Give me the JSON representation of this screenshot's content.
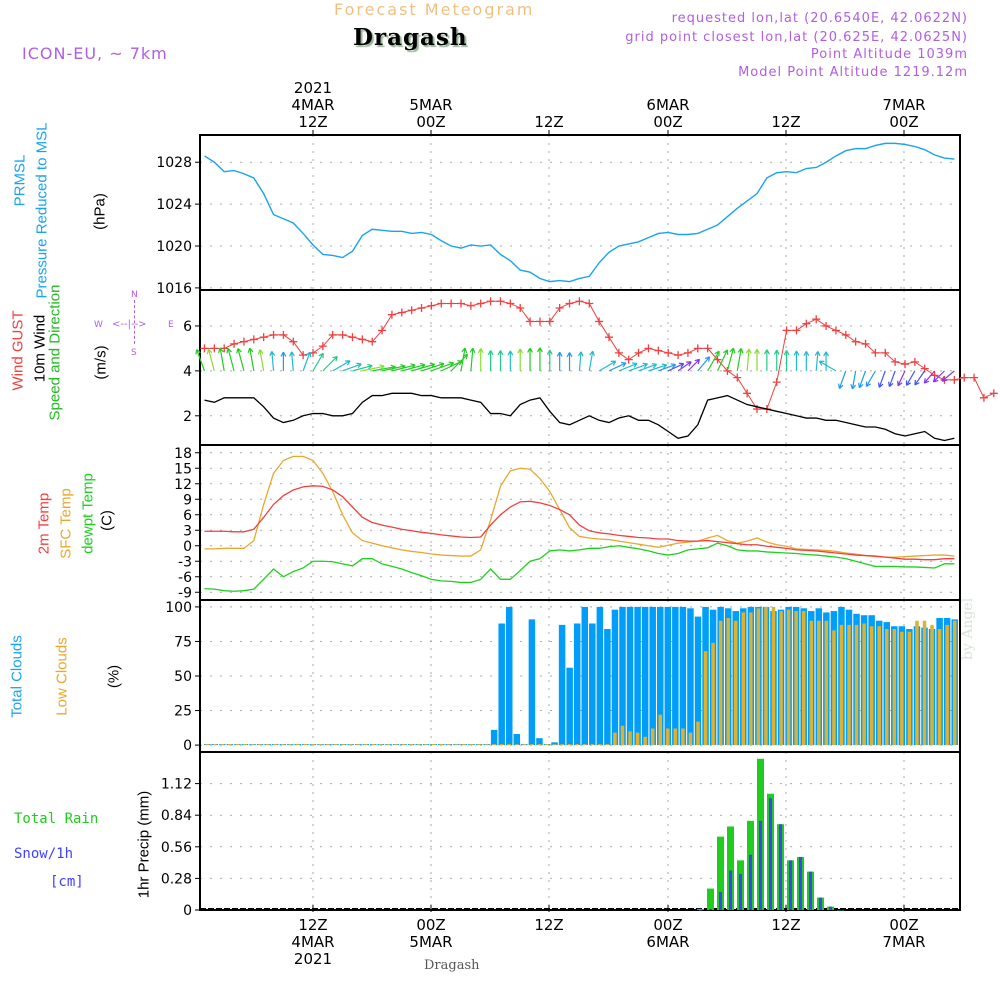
{
  "header": {
    "title": "Forecast Meteogram",
    "location": "Dragash",
    "model": "ICON-EU, ~ 7km",
    "requested": "requested lon,lat (20.6540E, 42.0622N)",
    "grid_point": "grid point closest lon,lat (20.625E, 42.0625N)",
    "point_altitude": "Point Altitude 1039m",
    "model_altitude": "Model Point Altitude 1219.12m"
  },
  "footer": {
    "location": "Dragash",
    "watermark": "by Angel"
  },
  "panel_labels": {
    "pressure": {
      "l1": "PRMSL",
      "l2": "Pressure Reduced to MSL",
      "unit": "(hPa)"
    },
    "wind": {
      "l1_a": "Wind ",
      "l1_b": "GUST",
      "l2": "10m Wind",
      "l3": "Speed and Direction",
      "unit": "(m/s)",
      "compass_n": "N",
      "compass_s": "S",
      "compass_w": "W",
      "compass_e": "E",
      "compass_h": "<--|-->"
    },
    "temp": {
      "l1": "2m Temp",
      "l2": "SFC Temp",
      "l3": "dewpt Temp",
      "unit": "(C)"
    },
    "clouds": {
      "l1": "Total Clouds",
      "l2": "Low Clouds",
      "unit": "(%)"
    },
    "precip": {
      "l1": "Total   Rain",
      "l2": "Snow/1h",
      "l3": "[cm]",
      "unit": "1hr Precip (mm)"
    }
  },
  "colors": {
    "pressure": "#1ba3ec",
    "gust": "#f04040",
    "wind": "#000000",
    "temp2m": "#f04040",
    "sfc": "#e8a830",
    "dewpt": "#20d020",
    "total_clouds": "#009ef8",
    "low_clouds": "#e0b030",
    "rain": "#20cc20",
    "snow": "#4040ff",
    "purple": "#b15ee0"
  },
  "chart_data": [
    {
      "type": "line",
      "title": "PRMSL Pressure Reduced to MSL",
      "ylabel": "(hPa)",
      "ylim": [
        1015.8,
        1030.6
      ],
      "yticks": [
        1016,
        1020,
        1024,
        1028
      ],
      "x_hours_from": "2021-03-04T01Z",
      "series": [
        {
          "name": "PRMSL",
          "values": [
            1028.6,
            1028.0,
            1027.1,
            1027.2,
            1026.9,
            1026.5,
            1025.0,
            1023.0,
            1022.6,
            1022.2,
            1021.2,
            1020.1,
            1019.2,
            1019.1,
            1018.9,
            1019.5,
            1021.0,
            1021.6,
            1021.5,
            1021.4,
            1021.4,
            1021.2,
            1021.3,
            1021.1,
            1020.5,
            1020.0,
            1019.8,
            1020.1,
            1020.0,
            1020.1,
            1019.2,
            1018.6,
            1017.7,
            1017.5,
            1016.9,
            1016.6,
            1016.7,
            1016.6,
            1016.9,
            1017.1,
            1018.4,
            1019.4,
            1020.0,
            1020.2,
            1020.4,
            1020.8,
            1021.2,
            1021.3,
            1021.1,
            1021.1,
            1021.2,
            1021.6,
            1022.0,
            1022.8,
            1023.6,
            1024.3,
            1025.0,
            1026.5,
            1027.0,
            1027.1,
            1027.0,
            1027.4,
            1027.5,
            1028.0,
            1028.6,
            1029.1,
            1029.3,
            1029.3,
            1029.6,
            1029.8,
            1029.8,
            1029.7,
            1029.5,
            1029.2,
            1028.7,
            1028.4,
            1028.3
          ]
        }
      ]
    },
    {
      "type": "line",
      "title": "Wind GUST / 10m Wind Speed and Direction",
      "ylabel": "(m/s)",
      "ylim": [
        0.7,
        7.6
      ],
      "yticks": [
        2,
        4,
        6
      ],
      "series": [
        {
          "name": "Wind GUST",
          "values": [
            5.0,
            5.0,
            5.0,
            5.2,
            5.3,
            5.4,
            5.5,
            5.6,
            5.6,
            5.3,
            4.7,
            4.8,
            5.1,
            5.6,
            5.6,
            5.5,
            5.4,
            5.3,
            5.8,
            6.5,
            6.6,
            6.7,
            6.8,
            6.9,
            7.0,
            7.0,
            7.0,
            6.9,
            7.0,
            7.1,
            7.1,
            7.0,
            6.8,
            6.2,
            6.2,
            6.2,
            6.8,
            7.0,
            7.1,
            7.0,
            6.2,
            5.5,
            4.8,
            4.5,
            4.8,
            5.0,
            4.9,
            4.8,
            4.7,
            4.8,
            5.0,
            5.0,
            4.5,
            4.0,
            3.7,
            3.0,
            2.3,
            2.3,
            3.5,
            5.8,
            5.8,
            6.1,
            6.3,
            6.0,
            5.8,
            5.6,
            5.3,
            5.2,
            4.8,
            4.8,
            4.4,
            4.3,
            4.4,
            4.1,
            3.8,
            3.6,
            3.6,
            3.7,
            3.7,
            2.8,
            3.0
          ]
        },
        {
          "name": "10m Wind",
          "values": [
            2.7,
            2.6,
            2.8,
            2.8,
            2.8,
            2.8,
            2.4,
            1.9,
            1.7,
            1.8,
            2.0,
            2.1,
            2.1,
            2.0,
            2.0,
            2.1,
            2.6,
            2.9,
            2.9,
            3.0,
            3.0,
            3.0,
            2.9,
            2.9,
            2.8,
            2.8,
            2.8,
            2.7,
            2.6,
            2.1,
            2.1,
            2.0,
            2.5,
            2.7,
            2.8,
            2.2,
            1.7,
            1.6,
            1.8,
            2.0,
            1.8,
            1.7,
            1.9,
            2.0,
            1.8,
            1.8,
            1.6,
            1.3,
            1.0,
            1.1,
            1.6,
            2.7,
            2.8,
            2.9,
            2.7,
            2.5,
            2.4,
            2.3,
            2.2,
            2.1,
            2.0,
            1.9,
            1.9,
            1.8,
            1.8,
            1.7,
            1.6,
            1.5,
            1.5,
            1.4,
            1.2,
            1.1,
            1.2,
            1.3,
            1.0,
            0.9,
            1.0
          ]
        },
        {
          "name": "Wind Direction (deg, towards)",
          "values": [
            340,
            345,
            350,
            345,
            345,
            350,
            350,
            355,
            0,
            355,
            20,
            30,
            45,
            60,
            70,
            75,
            78,
            80,
            78,
            76,
            75,
            74,
            72,
            70,
            65,
            45,
            10,
            5,
            0,
            0,
            0,
            0,
            0,
            0,
            0,
            0,
            0,
            0,
            5,
            10,
            60,
            65,
            68,
            70,
            70,
            72,
            70,
            65,
            55,
            45,
            40,
            30,
            25,
            15,
            10,
            5,
            0,
            0,
            0,
            0,
            0,
            0,
            5,
            0,
            300,
            200,
            190,
            200,
            210,
            200,
            200,
            205,
            210,
            215,
            220,
            225,
            230,
            232,
            235,
            238,
            240,
            240,
            245,
            250,
            255,
            250,
            250,
            255,
            260,
            255,
            250
          ]
        }
      ]
    },
    {
      "type": "line",
      "title": "2m Temp / SFC Temp / dewpt Temp",
      "ylabel": "(C)",
      "ylim": [
        -10.5,
        19.5
      ],
      "yticks": [
        -9,
        -6,
        -3,
        0,
        3,
        6,
        9,
        12,
        15,
        18
      ],
      "series": [
        {
          "name": "2m Temp",
          "values": [
            2.8,
            2.8,
            2.8,
            2.7,
            2.7,
            3.2,
            5.5,
            8.0,
            9.7,
            10.8,
            11.4,
            11.6,
            11.5,
            10.8,
            9.5,
            7.5,
            5.5,
            4.5,
            4.0,
            3.6,
            3.2,
            2.9,
            2.6,
            2.4,
            2.1,
            1.9,
            1.7,
            1.6,
            1.7,
            4.0,
            6.0,
            7.5,
            8.5,
            8.6,
            8.3,
            7.8,
            7.0,
            6.0,
            4.0,
            2.9,
            2.5,
            2.3,
            2.0,
            1.8,
            1.6,
            1.5,
            1.3,
            1.3,
            1.0,
            0.9,
            0.9,
            1.0,
            0.8,
            0.6,
            0.4,
            0.2,
            0.2,
            -0.1,
            -0.3,
            -0.5,
            -0.8,
            -0.9,
            -1.0,
            -1.2,
            -1.4,
            -1.6,
            -1.8,
            -1.9,
            -2.0,
            -2.2,
            -2.4,
            -2.6,
            -2.6,
            -2.7,
            -2.7,
            -2.5,
            -2.5
          ]
        },
        {
          "name": "SFC Temp",
          "values": [
            -0.6,
            -0.6,
            -0.5,
            -0.5,
            -0.5,
            1.0,
            8.0,
            14.0,
            16.5,
            17.3,
            17.3,
            16.5,
            14.0,
            10.5,
            6.0,
            2.5,
            1.0,
            0.5,
            0.0,
            -0.4,
            -0.8,
            -1.1,
            -1.3,
            -1.6,
            -1.8,
            -1.9,
            -2.0,
            -2.0,
            -0.8,
            5.0,
            11.5,
            14.5,
            15.0,
            14.8,
            13.0,
            10.5,
            7.0,
            3.5,
            1.8,
            1.5,
            1.3,
            1.2,
            0.9,
            0.6,
            0.3,
            0.0,
            -0.3,
            0.1,
            0.5,
            0.7,
            0.9,
            1.5,
            2.0,
            1.0,
            0.5,
            0.9,
            1.5,
            0.7,
            0.2,
            -0.1,
            -0.6,
            -0.7,
            -0.8,
            -0.9,
            -1.1,
            -1.4,
            -1.6,
            -1.9,
            -2.1,
            -2.2,
            -2.2,
            -2.1,
            -2.0,
            -1.9,
            -1.8,
            -1.8,
            -2.0
          ]
        },
        {
          "name": "dewpt Temp",
          "values": [
            -8.3,
            -8.4,
            -8.7,
            -8.8,
            -8.7,
            -8.4,
            -6.5,
            -4.5,
            -6.0,
            -5.0,
            -4.3,
            -3.0,
            -3.0,
            -3.1,
            -3.5,
            -3.9,
            -2.5,
            -2.5,
            -3.5,
            -4.0,
            -4.5,
            -5.2,
            -5.8,
            -6.5,
            -6.8,
            -6.9,
            -7.1,
            -7.1,
            -6.5,
            -4.5,
            -6.5,
            -6.5,
            -4.8,
            -3.0,
            -2.5,
            -1.0,
            -0.8,
            -1.0,
            -0.8,
            -0.5,
            -0.5,
            -0.2,
            0.0,
            -0.3,
            -0.6,
            -1.0,
            -1.5,
            -1.8,
            -1.5,
            -0.8,
            -0.6,
            -0.4,
            0.5,
            0.0,
            -0.8,
            -1.0,
            -1.0,
            -1.2,
            -1.3,
            -1.4,
            -1.5,
            -1.7,
            -1.8,
            -2.0,
            -2.2,
            -2.5,
            -3.0,
            -3.5,
            -4.0,
            -4.0,
            -4.0,
            -4.1,
            -4.1,
            -4.2,
            -4.3,
            -3.5,
            -3.5
          ]
        }
      ]
    },
    {
      "type": "bar",
      "title": "Total Clouds / Low Clouds",
      "ylabel": "(%)",
      "ylim": [
        -5,
        105
      ],
      "yticks": [
        0,
        25,
        50,
        75,
        100
      ],
      "series": [
        {
          "name": "Total Clouds",
          "values": [
            0,
            0,
            0,
            0,
            0,
            0,
            0,
            0,
            0,
            0,
            0,
            0,
            0,
            0,
            0,
            0,
            0,
            0,
            0,
            0,
            0,
            0,
            0,
            0,
            0,
            0,
            0,
            0,
            0,
            0,
            0,
            0,
            0,
            0,
            0,
            0,
            0,
            0,
            11,
            88,
            100,
            8,
            0,
            91,
            5,
            0,
            2,
            87,
            56,
            88,
            100,
            88,
            100,
            84,
            98,
            100,
            100,
            100,
            100,
            100,
            100,
            100,
            100,
            100,
            99,
            93,
            100,
            98,
            100,
            99,
            97,
            99,
            100,
            100,
            100,
            97,
            98,
            100,
            100,
            99,
            97,
            99,
            96,
            97,
            100,
            98,
            95,
            94,
            94,
            90,
            89,
            86,
            86,
            84,
            86,
            85,
            84,
            92,
            92,
            91,
            94
          ]
        },
        {
          "name": "Low Clouds",
          "values": [
            0,
            0,
            0,
            0,
            0,
            0,
            0,
            0,
            0,
            0,
            0,
            0,
            0,
            0,
            0,
            0,
            0,
            0,
            0,
            0,
            0,
            0,
            0,
            0,
            0,
            0,
            0,
            0,
            0,
            0,
            0,
            0,
            0,
            0,
            0,
            0,
            0,
            0,
            0,
            0,
            0,
            0,
            0,
            0,
            0,
            0,
            0,
            0,
            0,
            0,
            0,
            0,
            0,
            0,
            9,
            14,
            10,
            9,
            6,
            12,
            22,
            12,
            12,
            12,
            9,
            17,
            68,
            74,
            90,
            92,
            90,
            96,
            96,
            99,
            100,
            100,
            97,
            98,
            97,
            97,
            90,
            90,
            90,
            83,
            87,
            87,
            87,
            88,
            86,
            86,
            84,
            84,
            82,
            82,
            90,
            90,
            87,
            84,
            87,
            90,
            85,
            90
          ]
        }
      ]
    },
    {
      "type": "bar",
      "title": "Total Rain / Snow per 1h",
      "ylabel": "1hr Precip (mm)",
      "ylim": [
        0,
        1.4
      ],
      "yticks": [
        0,
        0.28,
        0.56,
        0.84,
        1.12
      ],
      "series": [
        {
          "name": "Total Rain",
          "values": [
            0.01,
            0.19,
            0.65,
            0.74,
            0.44,
            0.79,
            1.34,
            1.03,
            0.76,
            0.44,
            0.47,
            0.34,
            0.11,
            0.03,
            0.0
          ]
        },
        {
          "name": "Snow/1h",
          "values": [
            0.0,
            0.01,
            0.16,
            0.35,
            0.32,
            0.49,
            0.79,
            0.99,
            0.76,
            0.44,
            0.47,
            0.34,
            0.11,
            0.03,
            0.0
          ]
        }
      ],
      "x_hours_from": "2021-03-06T02Z"
    }
  ],
  "time_axis": {
    "top": [
      {
        "line1": "2021",
        "line2": "4MAR",
        "line3": "12Z"
      },
      {
        "line1": "",
        "line2": "5MAR",
        "line3": "00Z"
      },
      {
        "line1": "",
        "line2": "",
        "line3": "12Z"
      },
      {
        "line1": "",
        "line2": "6MAR",
        "line3": "00Z"
      },
      {
        "line1": "",
        "line2": "",
        "line3": "12Z"
      },
      {
        "line1": "",
        "line2": "7MAR",
        "line3": "00Z"
      }
    ],
    "bottom": [
      {
        "line1": "12Z",
        "line2": "4MAR",
        "line3": "2021"
      },
      {
        "line1": "00Z",
        "line2": "5MAR",
        "line3": ""
      },
      {
        "line1": "12Z",
        "line2": "",
        "line3": ""
      },
      {
        "line1": "00Z",
        "line2": "6MAR",
        "line3": ""
      },
      {
        "line1": "12Z",
        "line2": "",
        "line3": ""
      },
      {
        "line1": "00Z",
        "line2": "7MAR",
        "line3": ""
      }
    ]
  }
}
